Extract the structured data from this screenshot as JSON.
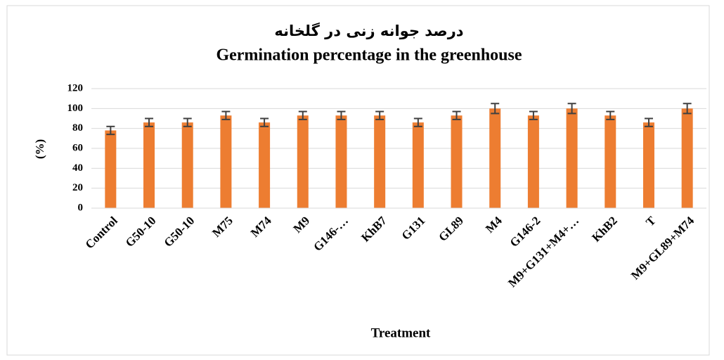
{
  "chart_data": {
    "type": "bar",
    "title": "درصد جوانه زنی در گلخانه",
    "subtitle": "Germination percentage in the greenhouse",
    "x_label": "Treatment",
    "y_label": "(%)",
    "categories": [
      "Control",
      "G50-10",
      "G50-10",
      "M75",
      "M74",
      "M9",
      "G146-…",
      "KhB7",
      "G131",
      "GL89",
      "M4",
      "G146-2",
      "M9+G131+M4+…",
      "KhB2",
      "T",
      "M9+GL89+M74"
    ],
    "values": [
      78,
      86,
      86,
      93,
      86,
      93,
      93,
      93,
      86,
      93,
      100,
      93,
      100,
      93,
      86,
      100
    ],
    "errors": [
      4,
      4,
      4,
      4,
      4,
      4,
      4,
      4,
      4,
      4,
      5,
      4,
      5,
      4,
      4,
      5
    ],
    "color": "#ed7d31",
    "error_color": "#404040",
    "ylim": [
      0,
      120
    ],
    "yticks": [
      0,
      20,
      40,
      60,
      80,
      100,
      120
    ],
    "grid": true
  }
}
